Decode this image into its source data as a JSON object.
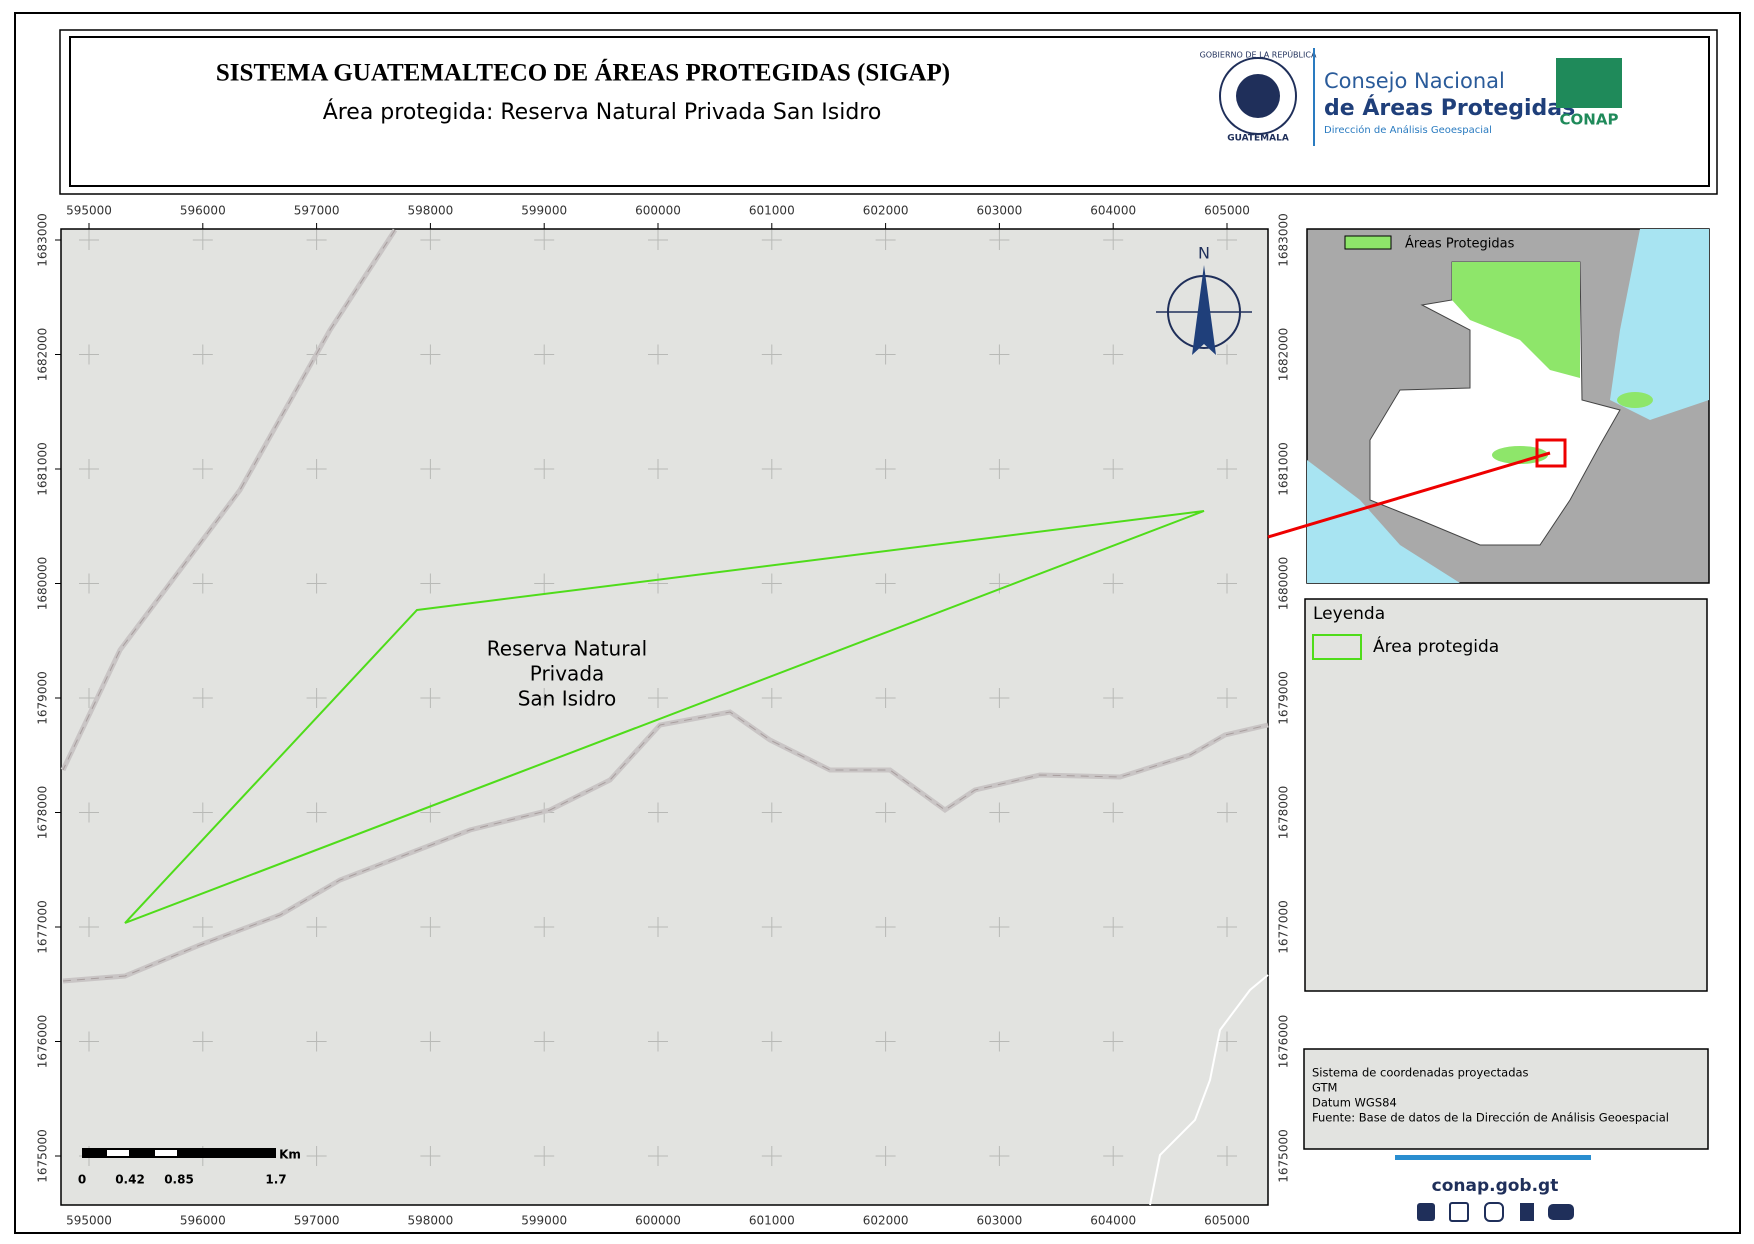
{
  "header": {
    "title": "SISTEMA GUATEMALTECO DE ÁREAS PROTEGIDAS  (SIGAP)",
    "subtitle": "Área protegida: Reserva Natural Privada San Isidro",
    "logos": {
      "seal_top": "GOBIERNO DE LA REPÚBLICA",
      "seal_bottom": "GUATEMALA",
      "org_line1": "Consejo Nacional",
      "org_line2": "de Áreas Protegidas",
      "org_line3": "Dirección de Análisis Geoespacial",
      "conap": "CONAP"
    }
  },
  "map": {
    "xticks": [
      595000,
      596000,
      597000,
      598000,
      599000,
      600000,
      601000,
      602000,
      603000,
      604000,
      605000
    ],
    "yticks": [
      1675000,
      1676000,
      1677000,
      1678000,
      1679000,
      1680000,
      1681000,
      1682000,
      1683000
    ],
    "north": "N",
    "area_label": [
      "Reserva Natural",
      "Privada",
      "San Isidro"
    ],
    "scale_bar": {
      "labels": [
        "0",
        "0.42",
        "0.85",
        "1.7"
      ],
      "unit": "Km"
    }
  },
  "inset": {
    "legend": "Áreas Protegidas"
  },
  "legend": {
    "title": "Leyenda",
    "item": "Área protegida"
  },
  "info": [
    "Sistema de coordenadas proyectadas",
    "GTM",
    "Datum WGS84",
    "Fuente: Base de datos de la Dirección de Análisis Geoespacial"
  ],
  "footer": {
    "url": "conap.gob.gt"
  }
}
